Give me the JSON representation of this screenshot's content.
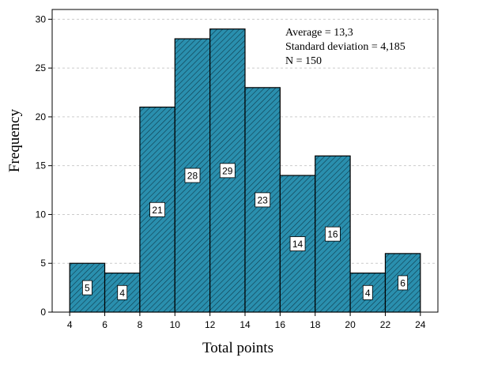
{
  "chart_data": {
    "type": "bar",
    "subtype": "histogram",
    "bin_edges": [
      4,
      6,
      8,
      10,
      12,
      14,
      16,
      18,
      20,
      22,
      24
    ],
    "values": [
      5,
      4,
      21,
      28,
      29,
      23,
      14,
      16,
      4,
      6
    ],
    "data_labels": [
      "5",
      "4",
      "21",
      "28",
      "29",
      "23",
      "14",
      "16",
      "4",
      "6"
    ],
    "xlabel": "Total points",
    "ylabel": "Frequency",
    "xlim": [
      3,
      25
    ],
    "ylim": [
      0,
      31
    ],
    "x_ticks": [
      4,
      6,
      8,
      10,
      12,
      14,
      16,
      18,
      20,
      22,
      24
    ],
    "y_ticks": [
      0,
      5,
      10,
      15,
      20,
      25,
      30
    ],
    "grid": "horizontal dashed",
    "annotations": {
      "average": "Average = 13,3",
      "std_dev": "Standard deviation = 4,185",
      "n": "N = 150"
    },
    "annotation_position": "top-right"
  },
  "colors": {
    "bar_fill": "#2a8fae",
    "bar_stroke": "#000000",
    "hatch": "#0d3b4c",
    "grid": "#cccccc"
  }
}
